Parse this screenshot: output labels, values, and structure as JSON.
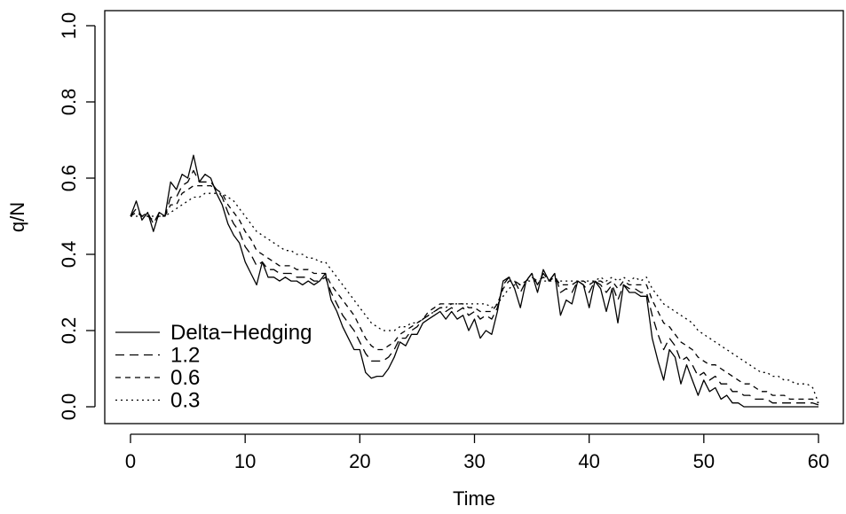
{
  "chart_data": {
    "type": "line",
    "title": "",
    "xlabel": "Time",
    "ylabel": "q/N",
    "xlim": [
      0,
      60
    ],
    "ylim": [
      0,
      1
    ],
    "xticks": [
      "0",
      "10",
      "20",
      "30",
      "40",
      "50",
      "60"
    ],
    "yticks": [
      "0.0",
      "0.2",
      "0.4",
      "0.6",
      "0.8",
      "1.0"
    ],
    "grid": false,
    "legend_position": "bottom-left",
    "x": [
      0,
      0.5,
      1,
      1.5,
      2,
      2.5,
      3,
      3.5,
      4,
      4.5,
      5,
      5.5,
      6,
      6.5,
      7,
      7.5,
      8,
      8.5,
      9,
      9.5,
      10,
      10.5,
      11,
      11.5,
      12,
      12.5,
      13,
      13.5,
      14,
      14.5,
      15,
      15.5,
      16,
      16.5,
      17,
      17.5,
      18,
      18.5,
      19,
      19.5,
      20,
      20.5,
      21,
      21.5,
      22,
      22.5,
      23,
      23.5,
      24,
      24.5,
      25,
      25.5,
      26,
      26.5,
      27,
      27.5,
      28,
      28.5,
      29,
      29.5,
      30,
      30.5,
      31,
      31.5,
      32,
      32.5,
      33,
      33.5,
      34,
      34.5,
      35,
      35.5,
      36,
      36.5,
      37,
      37.5,
      38,
      38.5,
      39,
      39.5,
      40,
      40.5,
      41,
      41.5,
      42,
      42.5,
      43,
      43.5,
      44,
      44.5,
      45,
      45.5,
      46,
      46.5,
      47,
      47.5,
      48,
      48.5,
      49,
      49.5,
      50,
      50.5,
      51,
      51.5,
      52,
      52.5,
      53,
      53.5,
      54,
      54.5,
      55,
      55.5,
      56,
      56.5,
      57,
      57.5,
      58,
      58.5,
      59,
      59.5,
      60
    ],
    "series": [
      {
        "name": "Delta−Hedging",
        "style": "solid",
        "values": [
          0.5,
          0.54,
          0.49,
          0.51,
          0.46,
          0.51,
          0.5,
          0.59,
          0.57,
          0.61,
          0.6,
          0.66,
          0.59,
          0.61,
          0.6,
          0.56,
          0.53,
          0.48,
          0.45,
          0.43,
          0.38,
          0.35,
          0.32,
          0.38,
          0.34,
          0.34,
          0.33,
          0.34,
          0.33,
          0.33,
          0.32,
          0.33,
          0.32,
          0.33,
          0.35,
          0.28,
          0.25,
          0.21,
          0.18,
          0.15,
          0.15,
          0.09,
          0.075,
          0.08,
          0.08,
          0.1,
          0.13,
          0.17,
          0.16,
          0.19,
          0.19,
          0.22,
          0.23,
          0.24,
          0.25,
          0.23,
          0.25,
          0.23,
          0.24,
          0.2,
          0.23,
          0.18,
          0.2,
          0.19,
          0.25,
          0.33,
          0.34,
          0.31,
          0.26,
          0.33,
          0.35,
          0.3,
          0.36,
          0.33,
          0.35,
          0.24,
          0.28,
          0.27,
          0.33,
          0.32,
          0.26,
          0.33,
          0.31,
          0.25,
          0.31,
          0.22,
          0.32,
          0.3,
          0.3,
          0.29,
          0.29,
          0.18,
          0.12,
          0.07,
          0.15,
          0.13,
          0.06,
          0.11,
          0.07,
          0.03,
          0.07,
          0.04,
          0.05,
          0.02,
          0.03,
          0.01,
          0.01,
          0.0,
          0.0,
          0.0,
          0.0,
          0.0,
          0.0,
          0.0,
          0.0,
          0.0,
          0.0,
          0.0,
          0.0,
          0.0,
          0.0
        ],
        "note_index_offset": 0
      },
      {
        "name": "1.2",
        "style": "dashed-long",
        "values": [
          0.5,
          0.52,
          0.5,
          0.51,
          0.48,
          0.51,
          0.5,
          0.55,
          0.55,
          0.58,
          0.59,
          0.62,
          0.59,
          0.59,
          0.59,
          0.57,
          0.55,
          0.51,
          0.48,
          0.46,
          0.42,
          0.4,
          0.37,
          0.38,
          0.36,
          0.36,
          0.35,
          0.35,
          0.35,
          0.34,
          0.34,
          0.34,
          0.33,
          0.33,
          0.34,
          0.3,
          0.27,
          0.24,
          0.22,
          0.2,
          0.17,
          0.14,
          0.12,
          0.12,
          0.12,
          0.13,
          0.15,
          0.18,
          0.18,
          0.2,
          0.21,
          0.23,
          0.24,
          0.25,
          0.26,
          0.25,
          0.26,
          0.25,
          0.26,
          0.24,
          0.25,
          0.23,
          0.24,
          0.23,
          0.26,
          0.32,
          0.34,
          0.33,
          0.3,
          0.33,
          0.35,
          0.32,
          0.35,
          0.33,
          0.35,
          0.3,
          0.31,
          0.3,
          0.33,
          0.32,
          0.3,
          0.33,
          0.32,
          0.3,
          0.32,
          0.28,
          0.32,
          0.31,
          0.31,
          0.3,
          0.3,
          0.24,
          0.19,
          0.15,
          0.18,
          0.16,
          0.12,
          0.13,
          0.11,
          0.08,
          0.09,
          0.07,
          0.08,
          0.06,
          0.06,
          0.04,
          0.04,
          0.03,
          0.03,
          0.02,
          0.02,
          0.02,
          0.01,
          0.01,
          0.01,
          0.01,
          0.01,
          0.01,
          0.01,
          0.01,
          0.005
        ]
      },
      {
        "name": "0.6",
        "style": "dashed",
        "values": [
          0.5,
          0.51,
          0.5,
          0.5,
          0.49,
          0.5,
          0.5,
          0.53,
          0.53,
          0.56,
          0.57,
          0.58,
          0.58,
          0.58,
          0.58,
          0.57,
          0.56,
          0.53,
          0.51,
          0.49,
          0.46,
          0.44,
          0.41,
          0.4,
          0.39,
          0.38,
          0.37,
          0.37,
          0.37,
          0.36,
          0.36,
          0.36,
          0.35,
          0.35,
          0.35,
          0.32,
          0.3,
          0.28,
          0.26,
          0.24,
          0.21,
          0.18,
          0.16,
          0.15,
          0.15,
          0.16,
          0.17,
          0.19,
          0.2,
          0.21,
          0.22,
          0.23,
          0.25,
          0.26,
          0.27,
          0.27,
          0.27,
          0.27,
          0.27,
          0.26,
          0.26,
          0.25,
          0.25,
          0.25,
          0.27,
          0.31,
          0.33,
          0.33,
          0.32,
          0.33,
          0.34,
          0.33,
          0.34,
          0.33,
          0.34,
          0.32,
          0.32,
          0.32,
          0.33,
          0.33,
          0.32,
          0.33,
          0.33,
          0.32,
          0.33,
          0.31,
          0.33,
          0.32,
          0.32,
          0.32,
          0.32,
          0.28,
          0.25,
          0.22,
          0.21,
          0.19,
          0.17,
          0.16,
          0.15,
          0.13,
          0.12,
          0.11,
          0.11,
          0.1,
          0.09,
          0.08,
          0.07,
          0.06,
          0.06,
          0.05,
          0.04,
          0.04,
          0.03,
          0.03,
          0.03,
          0.02,
          0.02,
          0.02,
          0.02,
          0.02,
          0.01
        ]
      },
      {
        "name": "0.3",
        "style": "dotted",
        "values": [
          0.5,
          0.5,
          0.5,
          0.5,
          0.5,
          0.5,
          0.5,
          0.51,
          0.52,
          0.53,
          0.54,
          0.55,
          0.55,
          0.56,
          0.56,
          0.56,
          0.56,
          0.55,
          0.54,
          0.52,
          0.5,
          0.48,
          0.46,
          0.45,
          0.44,
          0.43,
          0.42,
          0.41,
          0.41,
          0.4,
          0.4,
          0.39,
          0.39,
          0.38,
          0.38,
          0.36,
          0.34,
          0.32,
          0.3,
          0.28,
          0.26,
          0.24,
          0.22,
          0.21,
          0.2,
          0.2,
          0.2,
          0.21,
          0.21,
          0.22,
          0.22,
          0.23,
          0.24,
          0.25,
          0.26,
          0.26,
          0.27,
          0.27,
          0.27,
          0.27,
          0.27,
          0.27,
          0.27,
          0.26,
          0.27,
          0.29,
          0.31,
          0.32,
          0.32,
          0.33,
          0.33,
          0.33,
          0.33,
          0.33,
          0.33,
          0.33,
          0.33,
          0.33,
          0.33,
          0.33,
          0.33,
          0.33,
          0.34,
          0.33,
          0.34,
          0.33,
          0.34,
          0.33,
          0.34,
          0.33,
          0.34,
          0.31,
          0.29,
          0.27,
          0.26,
          0.25,
          0.24,
          0.23,
          0.22,
          0.2,
          0.19,
          0.18,
          0.17,
          0.16,
          0.15,
          0.14,
          0.13,
          0.12,
          0.11,
          0.1,
          0.09,
          0.09,
          0.08,
          0.08,
          0.07,
          0.07,
          0.06,
          0.06,
          0.06,
          0.05,
          0.01
        ]
      }
    ]
  }
}
